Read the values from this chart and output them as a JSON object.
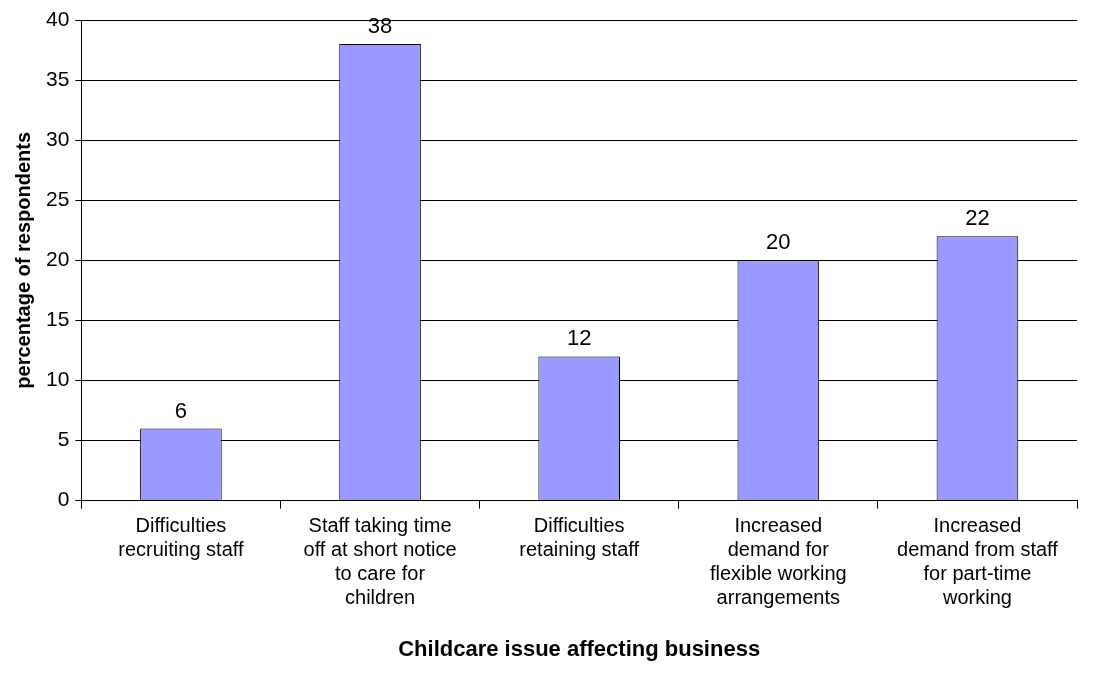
{
  "chart_data": {
    "type": "bar",
    "xlabel": "Childcare issue affecting business",
    "ylabel": "percentage of respondents",
    "categories": [
      "Difficulties recruiting staff",
      "Staff taking time off at short notice to care for children",
      "Difficulties retaining staff",
      "Increased demand for flexible working arrangements",
      "Increased demand from staff for part-time working"
    ],
    "values": [
      6,
      38,
      12,
      20,
      22
    ],
    "color": "#9999ff",
    "ylim": [
      0,
      40
    ],
    "yticks": [
      0,
      5,
      10,
      15,
      20,
      25,
      30,
      35,
      40
    ],
    "grid": "y",
    "legend": false,
    "data_labels": true
  }
}
